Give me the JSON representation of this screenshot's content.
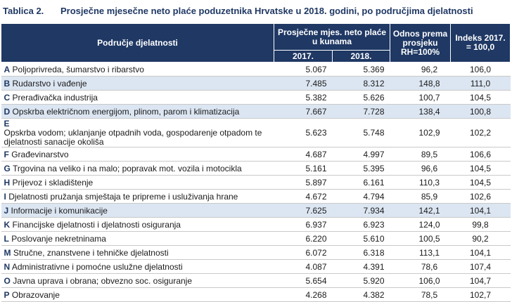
{
  "caption": {
    "number": "Tablica 2.",
    "title": "Prosječne mjesečne neto plaće poduzetnika Hrvatske u 2018. godini, po područjima djelatnosti"
  },
  "header": {
    "area": "Područje djelatnosti",
    "avg_salary": "Prosječne mjes. neto plaće u kunama",
    "year1": "2017.",
    "year2": "2018.",
    "ratio": "Odnos prema prosjeku RH=100%",
    "index": "Indeks 2017. = 100,0"
  },
  "rows": [
    {
      "letter": "A",
      "name": "Poljoprivreda, šumarstvo i ribarstvo",
      "y2017": "5.067",
      "y2018": "5.369",
      "ratio": "96,2",
      "index": "106,0"
    },
    {
      "letter": "B",
      "name": "Rudarstvo i vađenje",
      "y2017": "7.485",
      "y2018": "8.312",
      "ratio": "148,8",
      "index": "111,0"
    },
    {
      "letter": "C",
      "name": "Prerađivačka industrija",
      "y2017": "5.382",
      "y2018": "5.626",
      "ratio": "100,7",
      "index": "104,5"
    },
    {
      "letter": "D",
      "name": "Opskrba električnom energijom, plinom, parom i klimatizacija",
      "y2017": "7.667",
      "y2018": "7.728",
      "ratio": "138,4",
      "index": "100,8"
    },
    {
      "letter": "E",
      "name": "Opskrba vodom; uklanjanje otpadnih voda, gospodarenje otpadom te djelatnosti sanacije okoliša",
      "y2017": "5.623",
      "y2018": "5.748",
      "ratio": "102,9",
      "index": "102,2"
    },
    {
      "letter": "F",
      "name": "Građevinarstvo",
      "y2017": "4.687",
      "y2018": "4.997",
      "ratio": "89,5",
      "index": "106,6"
    },
    {
      "letter": "G",
      "name": "Trgovina na veliko i na malo; popravak mot. vozila i motocikla",
      "y2017": "5.161",
      "y2018": "5.395",
      "ratio": "96,6",
      "index": "104,5"
    },
    {
      "letter": "H",
      "name": "Prijevoz i skladištenje",
      "y2017": "5.897",
      "y2018": "6.161",
      "ratio": "110,3",
      "index": "104,5"
    },
    {
      "letter": "I",
      "name": "Djelatnosti pružanja smještaja te pripreme i usluživanja hrane",
      "y2017": "4.672",
      "y2018": "4.794",
      "ratio": "85,9",
      "index": "102,6"
    },
    {
      "letter": "J",
      "name": "Informacije i komunikacije",
      "y2017": "7.625",
      "y2018": "7.934",
      "ratio": "142,1",
      "index": "104,1"
    },
    {
      "letter": "K",
      "name": "Financijske djelatnosti i djelatnosti osiguranja",
      "y2017": "6.937",
      "y2018": "6.923",
      "ratio": "124,0",
      "index": "99,8"
    },
    {
      "letter": "L",
      "name": "Poslovanje nekretninama",
      "y2017": "6.220",
      "y2018": "5.610",
      "ratio": "100,5",
      "index": "90,2"
    },
    {
      "letter": "M",
      "name": "Stručne, znanstvene i tehničke djelatnosti",
      "y2017": "6.072",
      "y2018": "6.318",
      "ratio": "113,1",
      "index": "104,1"
    },
    {
      "letter": "N",
      "name": "Administrativne i pomoćne uslužne djelatnosti",
      "y2017": "4.087",
      "y2018": "4.391",
      "ratio": "78,6",
      "index": "107,4"
    },
    {
      "letter": "O",
      "name": "Javna uprava i obrana; obvezno soc. osiguranje",
      "y2017": "5.654",
      "y2018": "5.920",
      "ratio": "106,0",
      "index": "104,7"
    },
    {
      "letter": "P",
      "name": "Obrazovanje",
      "y2017": "4.268",
      "y2018": "4.382",
      "ratio": "78,5",
      "index": "102,7"
    }
  ],
  "colors": {
    "header_bg": "#1f3864",
    "highlight_bg": "#dce6f2",
    "caption": "#1f3864"
  }
}
